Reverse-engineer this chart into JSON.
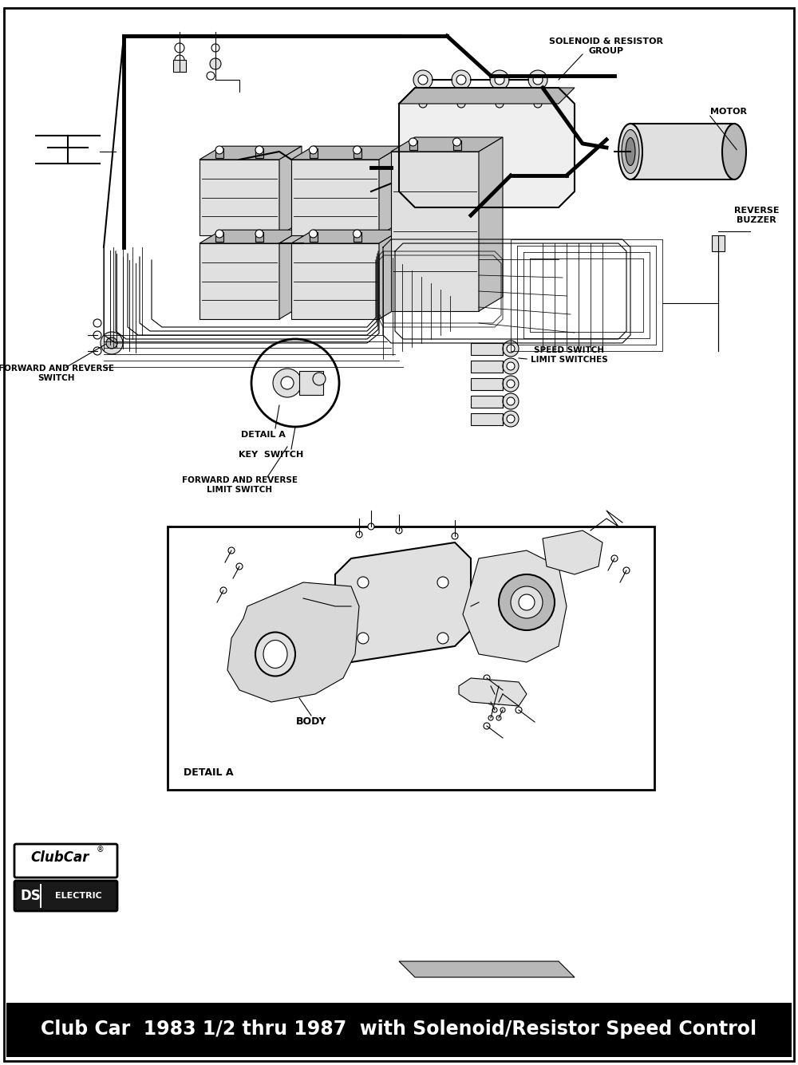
{
  "title": "Club Car  1983 1/2 thru 1987  with Solenoid/Resistor Speed Control",
  "bg_color": "#ffffff",
  "fig_width": 10.0,
  "fig_height": 13.35,
  "labels": {
    "solenoid_group": "SOLENOID & RESISTOR\nGROUP",
    "motor": "MOTOR",
    "reverse_buzzer": "REVERSE\nBUZZER",
    "forward_reverse_switch": "FORWARD AND REVERSE\nSWITCH",
    "detail_a_top": "DETAIL A",
    "key_switch": "KEY  SWITCH",
    "forward_reverse_limit": "FORWARD AND REVERSE\nLIMIT SWITCH",
    "speed_switch": "SPEED SWITCH\nLIMIT SWITCHES",
    "detail_a_bottom": "DETAIL A",
    "body_label": "BODY"
  },
  "title_fontsize": 17,
  "label_fs": 7.5,
  "lw_thin": 0.8,
  "lw_med": 1.5,
  "lw_thick": 3.5
}
